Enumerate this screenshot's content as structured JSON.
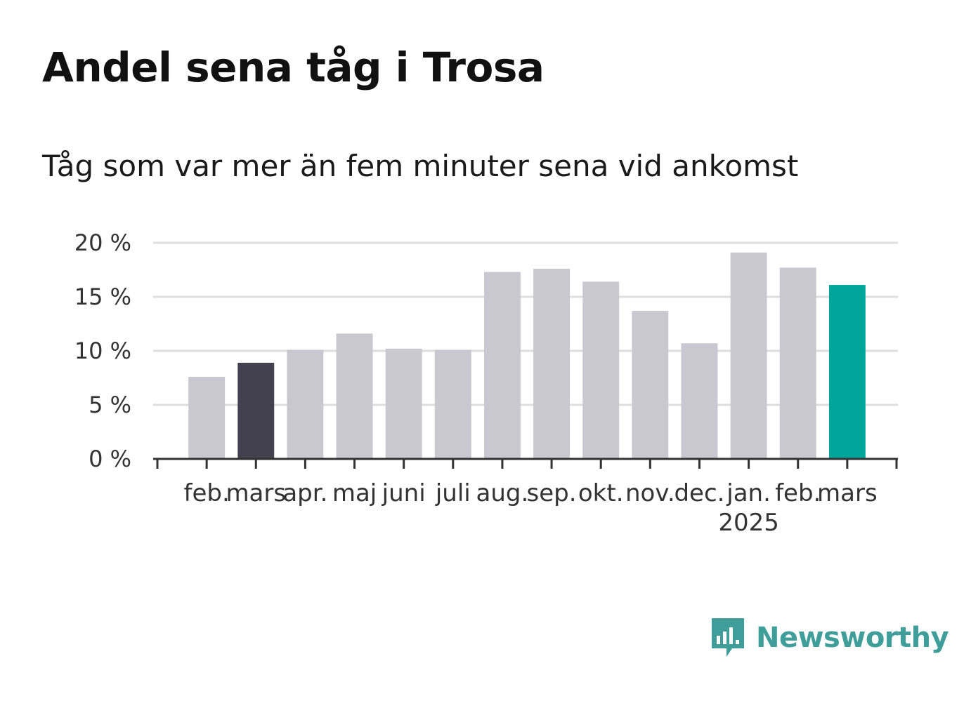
{
  "header": {
    "title": "Andel sena tåg i Trosa",
    "subtitle": "Tåg som var mer än fem minuter sena vid ankomst"
  },
  "brand": {
    "name": "Newsworthy",
    "color": "#3f9e99",
    "icon": "newsworthy-logo-icon"
  },
  "chart_data": {
    "type": "bar",
    "categories": [
      "feb.",
      "mars",
      "apr.",
      "maj",
      "juni",
      "juli",
      "aug.",
      "sep.",
      "okt.",
      "nov.",
      "dec.",
      "jan.",
      "feb.",
      "mars"
    ],
    "year_labels": [
      {
        "index": 11,
        "label": "2025"
      }
    ],
    "values": [
      7.6,
      8.9,
      10.1,
      11.6,
      10.2,
      10.1,
      17.3,
      17.6,
      16.4,
      13.7,
      10.7,
      19.1,
      17.7,
      16.1
    ],
    "highlight": {
      "1": "#42414d",
      "13": "#00a699"
    },
    "default_color": "#c9c8d0",
    "ylim": [
      0,
      20
    ],
    "yticks": [
      0,
      5,
      10,
      15,
      20
    ],
    "ytick_labels": [
      "0 %",
      "5 %",
      "10 %",
      "15 %",
      "20 %"
    ],
    "grid": true,
    "title": "",
    "xlabel": "",
    "ylabel": ""
  }
}
